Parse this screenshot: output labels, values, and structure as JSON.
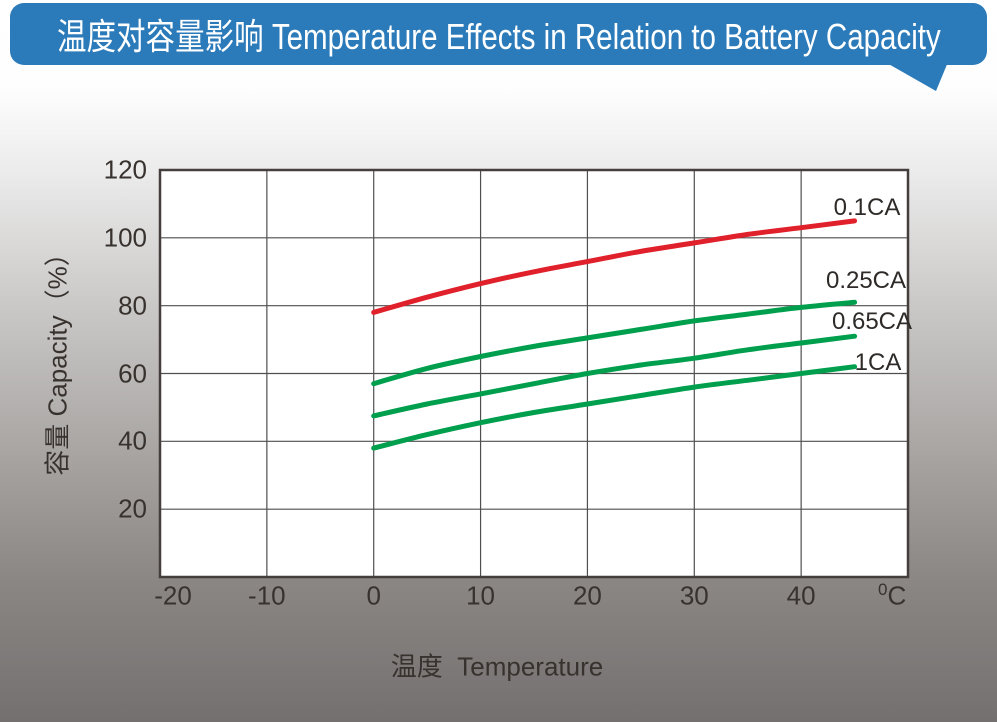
{
  "banner": {
    "title": "温度对容量影响 Temperature Effects in Relation to Battery Capacity",
    "bg_color": "#2b7ab9",
    "text_color": "#ffffff"
  },
  "chart_data": {
    "type": "line",
    "title": "温度对容量影响 Temperature Effects in Relation to Battery Capacity",
    "xlabel": "温度  Temperature",
    "ylabel": "容量 Capacity（%）",
    "x_unit": "°C",
    "x_unit_sup": "0",
    "x_unit_main": "C",
    "xlim": [
      -20,
      50
    ],
    "ylim": [
      0,
      120
    ],
    "x_ticks": [
      -20,
      -10,
      0,
      10,
      20,
      30,
      40
    ],
    "y_ticks": [
      120,
      100,
      80,
      60,
      40,
      20
    ],
    "grid": true,
    "grid_color": "#4f4f4f",
    "frame_color": "#443f3d",
    "plot_bg": "#ffffff",
    "legend_position": "right-inside",
    "series": [
      {
        "name": "0.1CA",
        "color": "#e0202a",
        "points": [
          [
            0,
            78
          ],
          [
            5,
            82.5
          ],
          [
            10,
            86.5
          ],
          [
            15,
            90
          ],
          [
            20,
            93
          ],
          [
            25,
            96
          ],
          [
            30,
            98.5
          ],
          [
            35,
            101
          ],
          [
            40,
            103
          ],
          [
            45,
            105
          ]
        ]
      },
      {
        "name": "0.25CA",
        "color": "#009f4d",
        "points": [
          [
            0,
            57
          ],
          [
            5,
            61.5
          ],
          [
            10,
            65
          ],
          [
            15,
            68
          ],
          [
            20,
            70.5
          ],
          [
            25,
            73
          ],
          [
            30,
            75.5
          ],
          [
            35,
            77.5
          ],
          [
            40,
            79.5
          ],
          [
            45,
            81
          ]
        ]
      },
      {
        "name": "0.65CA",
        "color": "#009f4d",
        "points": [
          [
            0,
            47.5
          ],
          [
            5,
            51
          ],
          [
            10,
            54
          ],
          [
            15,
            57
          ],
          [
            20,
            60
          ],
          [
            25,
            62.5
          ],
          [
            30,
            64.5
          ],
          [
            35,
            67
          ],
          [
            40,
            69
          ],
          [
            45,
            71
          ]
        ]
      },
      {
        "name": "1CA",
        "color": "#009f4d",
        "points": [
          [
            0,
            38
          ],
          [
            5,
            42
          ],
          [
            10,
            45.5
          ],
          [
            15,
            48.5
          ],
          [
            20,
            51
          ],
          [
            25,
            53.5
          ],
          [
            30,
            56
          ],
          [
            35,
            58
          ],
          [
            40,
            60
          ],
          [
            45,
            62
          ]
        ]
      }
    ]
  }
}
